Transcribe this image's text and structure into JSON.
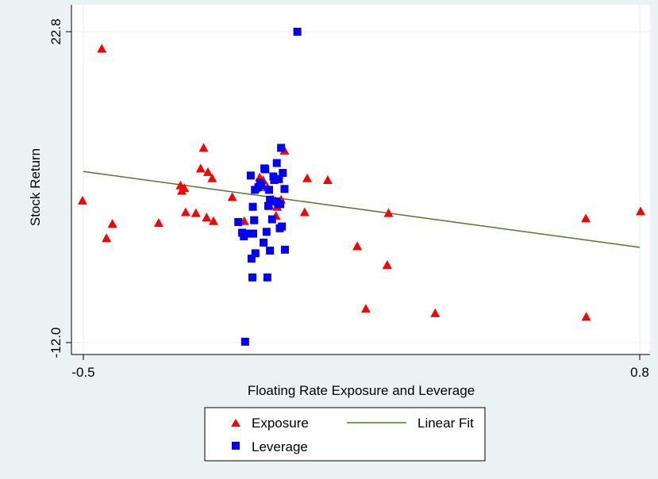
{
  "chart_data": {
    "type": "scatter",
    "title": "",
    "xlabel": "Floating Rate Exposure and Leverage",
    "ylabel": "Stock Return",
    "xlim": [
      -0.5,
      0.8
    ],
    "ylim": [
      -12.0,
      22.8
    ],
    "xticks": [
      "-0.5",
      "0.8"
    ],
    "yticks": [
      "-12.0",
      "22.8"
    ],
    "grid": true,
    "legend_position": "bottom",
    "series": [
      {
        "name": "Exposure",
        "marker": "triangle",
        "color": "#ff0000",
        "points": [
          [
            -0.502,
            3.9
          ],
          [
            -0.457,
            20.9
          ],
          [
            -0.446,
            -0.3
          ],
          [
            -0.432,
            1.3
          ],
          [
            -0.324,
            1.4
          ],
          [
            -0.273,
            5.6
          ],
          [
            -0.27,
            5.0
          ],
          [
            -0.264,
            5.3
          ],
          [
            -0.261,
            2.6
          ],
          [
            -0.237,
            2.5
          ],
          [
            -0.226,
            7.5
          ],
          [
            -0.219,
            9.8
          ],
          [
            -0.212,
            2.0
          ],
          [
            -0.209,
            7.1
          ],
          [
            -0.199,
            6.4
          ],
          [
            -0.196,
            1.6
          ],
          [
            -0.152,
            4.3
          ],
          [
            -0.124,
            1.6
          ],
          [
            -0.097,
            5.3
          ],
          [
            -0.088,
            6.5
          ],
          [
            -0.08,
            6.2
          ],
          [
            -0.07,
            5.4
          ],
          [
            -0.064,
            3.3
          ],
          [
            -0.058,
            4.0
          ],
          [
            -0.052,
            3.9
          ],
          [
            -0.05,
            2.2
          ],
          [
            -0.047,
            3.2
          ],
          [
            -0.038,
            4.0
          ],
          [
            -0.03,
            9.5
          ],
          [
            0.017,
            2.6
          ],
          [
            0.023,
            6.4
          ],
          [
            0.071,
            6.2
          ],
          [
            0.14,
            -1.2
          ],
          [
            0.16,
            -8.2
          ],
          [
            0.21,
            -3.3
          ],
          [
            0.213,
            2.5
          ],
          [
            0.322,
            -8.7
          ],
          [
            0.674,
            1.9
          ],
          [
            0.675,
            -9.1
          ],
          [
            0.802,
            2.7
          ]
        ]
      },
      {
        "name": "Leverage",
        "marker": "square",
        "color": "#0000ff",
        "points": [
          [
            0.0,
            22.8
          ],
          [
            -0.138,
            1.5
          ],
          [
            -0.129,
            0.3
          ],
          [
            -0.125,
            -0.1
          ],
          [
            -0.122,
            -11.9
          ],
          [
            -0.112,
            0.2
          ],
          [
            -0.109,
            6.7
          ],
          [
            -0.107,
            -2.6
          ],
          [
            -0.105,
            -4.7
          ],
          [
            -0.104,
            3.2
          ],
          [
            -0.103,
            0.2
          ],
          [
            -0.101,
            1.7
          ],
          [
            -0.099,
            5.1
          ],
          [
            -0.098,
            -2.0
          ],
          [
            -0.091,
            5.4
          ],
          [
            -0.087,
            5.9
          ],
          [
            -0.084,
            5.6
          ],
          [
            -0.079,
            -0.8
          ],
          [
            -0.077,
            7.5
          ],
          [
            -0.075,
            7.4
          ],
          [
            -0.072,
            0.4
          ],
          [
            -0.07,
            -4.7
          ],
          [
            -0.068,
            3.3
          ],
          [
            -0.066,
            5.1
          ],
          [
            -0.064,
            4.0
          ],
          [
            -0.064,
            -1.7
          ],
          [
            -0.059,
            1.8
          ],
          [
            -0.056,
            6.6
          ],
          [
            -0.054,
            6.2
          ],
          [
            -0.049,
            3.8
          ],
          [
            -0.048,
            8.1
          ],
          [
            -0.045,
            3.5
          ],
          [
            -0.043,
            6.3
          ],
          [
            -0.041,
            0.8
          ],
          [
            -0.04,
            3.5
          ],
          [
            -0.038,
            9.8
          ],
          [
            -0.036,
            1.0
          ],
          [
            -0.034,
            7.0
          ],
          [
            -0.03,
            5.2
          ],
          [
            -0.029,
            -1.6
          ]
        ]
      },
      {
        "name": "Linear Fit",
        "marker": "line",
        "color": "#4f7a28",
        "points": [
          [
            -0.5,
            7.15
          ],
          [
            0.8,
            -1.34
          ]
        ]
      }
    ]
  }
}
